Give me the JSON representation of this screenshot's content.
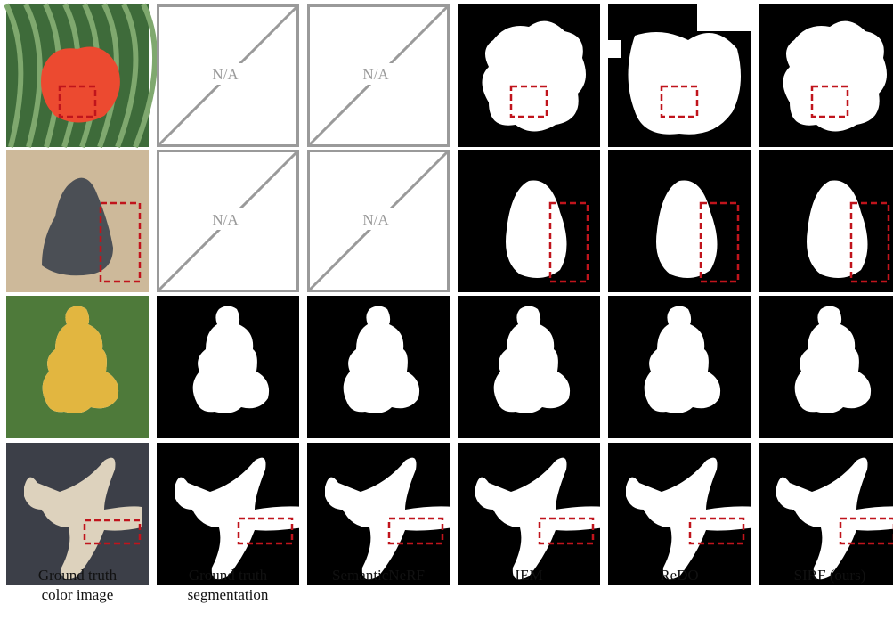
{
  "na_cells": [
    "N/A",
    "N/A",
    "N/A",
    "N/A"
  ],
  "columns": [
    [
      "Ground truth",
      "color image"
    ],
    [
      "Ground truth",
      "segmentation"
    ],
    [
      "SemanticNeRF"
    ],
    [
      "IEM"
    ],
    [
      "ReDO"
    ],
    [
      "SIRF (ours)"
    ]
  ]
}
